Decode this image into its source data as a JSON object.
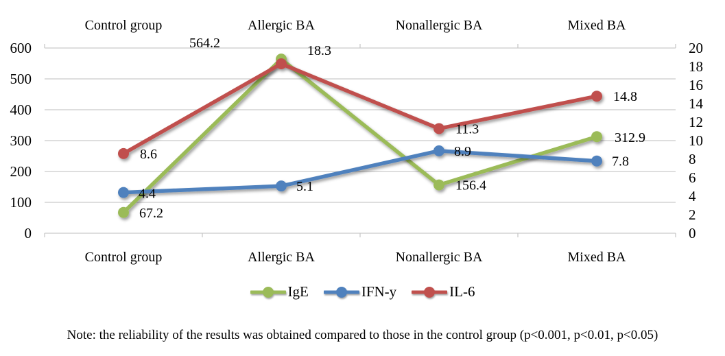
{
  "chart_data": {
    "type": "line",
    "title": "",
    "categories": [
      "Control group",
      "Allergic BA",
      "Nonallergic BA",
      "Mixed BA"
    ],
    "left_axis": {
      "min": 0,
      "max": 600,
      "ticks": [
        600,
        500,
        400,
        300,
        200,
        100,
        0
      ]
    },
    "right_axis": {
      "min": 0,
      "max": 20,
      "ticks": [
        20,
        18,
        16,
        14,
        12,
        10,
        8,
        6,
        4,
        2,
        0
      ]
    },
    "grid": true,
    "grid_color": "#C9C9C9",
    "legend_position": "bottom",
    "series": [
      {
        "name": "IgE",
        "axis": "left",
        "color": "#9BBB59",
        "values": [
          67.2,
          564.2,
          156.4,
          312.9
        ],
        "label_offsets": [
          [
            23,
            7
          ],
          [
            -134,
            -17
          ],
          [
            24,
            7
          ],
          [
            26,
            8
          ]
        ]
      },
      {
        "name": "IFN-y",
        "axis": "right",
        "color": "#4F81BD",
        "values": [
          4.4,
          5.1,
          8.9,
          7.8
        ],
        "label_offsets": [
          [
            22,
            8
          ],
          [
            22,
            7
          ],
          [
            22,
            7
          ],
          [
            22,
            7
          ]
        ]
      },
      {
        "name": "IL-6",
        "axis": "right",
        "color": "#C0504D",
        "values": [
          8.6,
          18.3,
          11.3,
          14.8
        ],
        "label_offsets": [
          [
            24,
            7
          ],
          [
            38,
            -13
          ],
          [
            24,
            7
          ],
          [
            24,
            7
          ]
        ]
      }
    ]
  },
  "note": "Note: the reliability of the results was obtained compared to those in the control group (p<0.001, p<0.01, p<0.05)"
}
